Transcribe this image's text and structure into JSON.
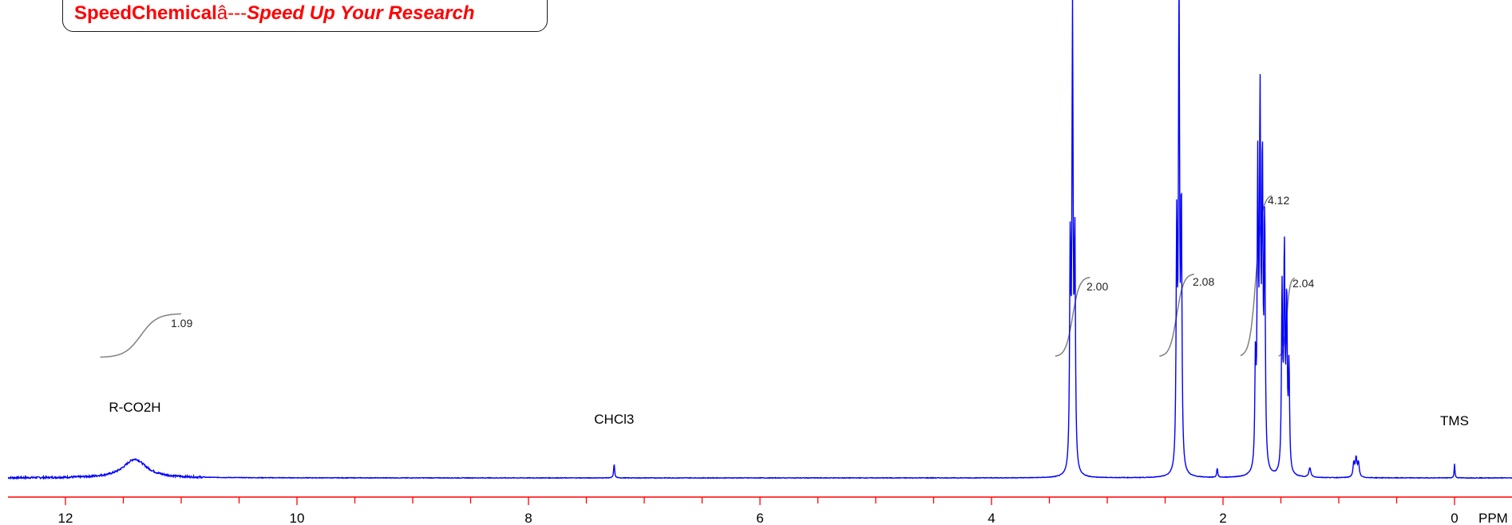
{
  "banner": {
    "brand": "SpeedChemical",
    "separator": "â---",
    "slogan": "Speed Up Your Research"
  },
  "chart_data": {
    "type": "line",
    "title": "",
    "xlabel": "PPM",
    "ylabel": "",
    "x_reversed": true,
    "xlim": [
      12.5,
      -0.5
    ],
    "x_ticks_major": [
      12,
      10,
      8,
      6,
      4,
      2,
      0
    ],
    "x_tick_labels": [
      "12",
      "10",
      "8",
      "6",
      "4",
      "2",
      "0"
    ],
    "minor_tick_step": 0.5,
    "grid": false,
    "colors": {
      "spectrum": "#0000ff",
      "axis": "#ff0000",
      "integral": "#808080"
    },
    "peak_labels": [
      {
        "text": "R-CO2H",
        "ppm": 11.4
      },
      {
        "text": "CHCl3",
        "ppm": 7.26
      },
      {
        "text": "TMS",
        "ppm": 0.0
      }
    ],
    "integrals": [
      {
        "value": "1.09",
        "from_ppm": 11.7,
        "to_ppm": 11.0
      },
      {
        "value": "2.00",
        "from_ppm": 3.45,
        "to_ppm": 3.15
      },
      {
        "value": "2.08",
        "from_ppm": 2.55,
        "to_ppm": 2.25
      },
      {
        "value": "4.12",
        "from_ppm": 1.85,
        "to_ppm": 1.58
      },
      {
        "value": "2.04",
        "from_ppm": 1.52,
        "to_ppm": 1.38
      }
    ],
    "peaks": [
      {
        "ppm": 11.4,
        "height": 0.04,
        "width": 0.12
      },
      {
        "ppm": 7.26,
        "height": 0.03,
        "width": 0.005
      },
      {
        "ppm": 3.32,
        "height": 0.47,
        "width": 0.006
      },
      {
        "ppm": 3.3,
        "height": 0.95,
        "width": 0.006
      },
      {
        "ppm": 3.28,
        "height": 0.48,
        "width": 0.006
      },
      {
        "ppm": 2.4,
        "height": 0.5,
        "width": 0.006
      },
      {
        "ppm": 2.38,
        "height": 1.0,
        "width": 0.006
      },
      {
        "ppm": 2.36,
        "height": 0.55,
        "width": 0.006
      },
      {
        "ppm": 2.05,
        "height": 0.02,
        "width": 0.005
      },
      {
        "ppm": 1.72,
        "height": 0.22,
        "width": 0.006
      },
      {
        "ppm": 1.7,
        "height": 0.62,
        "width": 0.006
      },
      {
        "ppm": 1.68,
        "height": 0.75,
        "width": 0.006
      },
      {
        "ppm": 1.66,
        "height": 0.63,
        "width": 0.006
      },
      {
        "ppm": 1.64,
        "height": 0.52,
        "width": 0.006
      },
      {
        "ppm": 1.49,
        "height": 0.38,
        "width": 0.006
      },
      {
        "ppm": 1.47,
        "height": 0.46,
        "width": 0.006
      },
      {
        "ppm": 1.45,
        "height": 0.36,
        "width": 0.006
      },
      {
        "ppm": 1.43,
        "height": 0.22,
        "width": 0.006
      },
      {
        "ppm": 1.25,
        "height": 0.02,
        "width": 0.01
      },
      {
        "ppm": 0.87,
        "height": 0.03,
        "width": 0.008
      },
      {
        "ppm": 0.85,
        "height": 0.04,
        "width": 0.008
      },
      {
        "ppm": 0.83,
        "height": 0.03,
        "width": 0.008
      },
      {
        "ppm": 0.0,
        "height": 0.03,
        "width": 0.004
      }
    ]
  }
}
